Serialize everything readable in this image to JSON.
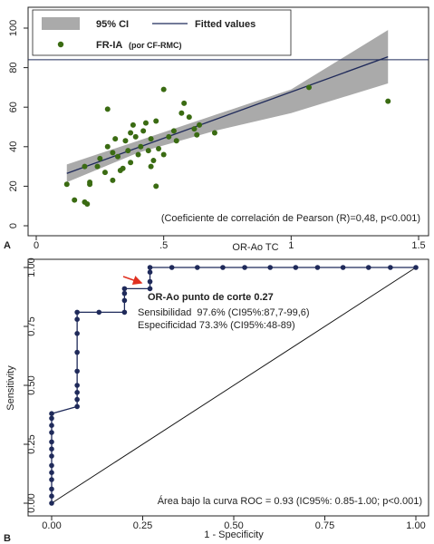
{
  "panel_a": {
    "label": "A",
    "legend": {
      "ci_label": "95% CI",
      "fit_label": "Fitted values",
      "points_label": "FR-IA",
      "points_sublabel": "(por CF-RMC)"
    },
    "annotation": "(Coeficiente de correlación de Pearson (R)=0,48, p<0.001)",
    "colors": {
      "points": "#3a6b12",
      "ci": "#aaaaaa",
      "fit": "#1f2a5a"
    }
  },
  "panel_b": {
    "label": "B",
    "cutoff_label": "OR-Ao punto de corte 0.27",
    "sensitivity_text": "Sensibilidad  97.6% (CI95%:87,7-99,6)",
    "specificity_text": "Especificidad 73.3% (CI95%:48-89)",
    "auc_text": "Área bajo la curva ROC = 0.93 (IC95%: 0.85-1.00; p<0.001)",
    "colors": {
      "curve": "#1f2a5a",
      "arrow": "#e03020",
      "diagonal": "#111111"
    }
  },
  "chart_data": [
    {
      "type": "scatter",
      "xlabel": "OR-Ao TC",
      "ylabel": "",
      "xlim": [
        0,
        1.5
      ],
      "ylim": [
        -2,
        100
      ],
      "x_ticks": [
        "0",
        ".5",
        "1",
        "1.5"
      ],
      "y_ticks": [
        "0",
        "20",
        "40",
        "60",
        "80",
        "100"
      ],
      "series": [
        {
          "name": "FR-IA (por CF-RMC)",
          "points": [
            [
              0.12,
              21
            ],
            [
              0.15,
              13
            ],
            [
              0.19,
              12
            ],
            [
              0.2,
              11
            ],
            [
              0.19,
              30
            ],
            [
              0.21,
              21
            ],
            [
              0.21,
              22
            ],
            [
              0.24,
              30
            ],
            [
              0.25,
              34
            ],
            [
              0.27,
              27
            ],
            [
              0.28,
              40
            ],
            [
              0.28,
              59
            ],
            [
              0.3,
              37
            ],
            [
              0.3,
              23
            ],
            [
              0.31,
              44
            ],
            [
              0.32,
              35
            ],
            [
              0.33,
              28
            ],
            [
              0.34,
              29
            ],
            [
              0.35,
              43
            ],
            [
              0.36,
              38
            ],
            [
              0.37,
              32
            ],
            [
              0.37,
              47
            ],
            [
              0.38,
              51
            ],
            [
              0.39,
              45
            ],
            [
              0.4,
              36
            ],
            [
              0.41,
              40
            ],
            [
              0.42,
              48
            ],
            [
              0.43,
              52
            ],
            [
              0.44,
              38
            ],
            [
              0.45,
              30
            ],
            [
              0.45,
              44
            ],
            [
              0.46,
              33
            ],
            [
              0.47,
              53
            ],
            [
              0.48,
              39
            ],
            [
              0.5,
              36
            ],
            [
              0.52,
              45
            ],
            [
              0.54,
              48
            ],
            [
              0.55,
              43
            ],
            [
              0.57,
              57
            ],
            [
              0.58,
              62
            ],
            [
              0.6,
              55
            ],
            [
              0.62,
              49
            ],
            [
              0.63,
              46
            ],
            [
              0.64,
              51
            ],
            [
              0.5,
              69
            ],
            [
              0.47,
              20
            ],
            [
              0.7,
              47
            ],
            [
              1.07,
              70
            ],
            [
              1.38,
              63
            ]
          ]
        },
        {
          "name": "Fitted values",
          "line": [
            [
              0.12,
              26.5
            ],
            [
              1.38,
              85.5
            ]
          ]
        }
      ],
      "ci_band": {
        "x": [
          0.12,
          0.4,
          0.7,
          1.0,
          1.38
        ],
        "lower": [
          22,
          37,
          48,
          57,
          72
        ],
        "upper": [
          31,
          43,
          56,
          69,
          99
        ]
      },
      "reference_line_y": 84
    },
    {
      "type": "line",
      "xlabel": "1 - Specificity",
      "ylabel": "Sensitivity",
      "xlim": [
        0,
        1
      ],
      "ylim": [
        0,
        1
      ],
      "x_ticks": [
        "0.00",
        "0.25",
        "0.50",
        "0.75",
        "1.00"
      ],
      "y_ticks": [
        "0.00",
        "0.25",
        "0.50",
        "0.75",
        "1.00"
      ],
      "series": [
        {
          "name": "ROC",
          "points": [
            [
              0,
              0
            ],
            [
              0,
              0.03
            ],
            [
              0,
              0.06
            ],
            [
              0,
              0.1
            ],
            [
              0,
              0.13
            ],
            [
              0,
              0.16
            ],
            [
              0,
              0.2
            ],
            [
              0,
              0.23
            ],
            [
              0,
              0.26
            ],
            [
              0,
              0.3
            ],
            [
              0,
              0.33
            ],
            [
              0,
              0.36
            ],
            [
              0,
              0.38
            ],
            [
              0.07,
              0.41
            ],
            [
              0.07,
              0.44
            ],
            [
              0.07,
              0.47
            ],
            [
              0.07,
              0.5
            ],
            [
              0.07,
              0.56
            ],
            [
              0.07,
              0.64
            ],
            [
              0.07,
              0.72
            ],
            [
              0.07,
              0.78
            ],
            [
              0.07,
              0.81
            ],
            [
              0.13,
              0.81
            ],
            [
              0.2,
              0.81
            ],
            [
              0.2,
              0.86
            ],
            [
              0.2,
              0.89
            ],
            [
              0.2,
              0.91
            ],
            [
              0.27,
              0.91
            ],
            [
              0.27,
              0.94
            ],
            [
              0.27,
              0.98
            ],
            [
              0.27,
              1.0
            ],
            [
              0.33,
              1.0
            ],
            [
              0.4,
              1.0
            ],
            [
              0.47,
              1.0
            ],
            [
              0.53,
              1.0
            ],
            [
              0.6,
              1.0
            ],
            [
              0.67,
              1.0
            ],
            [
              0.73,
              1.0
            ],
            [
              0.8,
              1.0
            ],
            [
              0.87,
              1.0
            ],
            [
              0.93,
              1.0
            ],
            [
              1.0,
              1.0
            ]
          ]
        },
        {
          "name": "reference",
          "line": [
            [
              0,
              0
            ],
            [
              1,
              1
            ]
          ]
        }
      ],
      "cutoff_point": [
        0.27,
        0.976
      ]
    }
  ]
}
